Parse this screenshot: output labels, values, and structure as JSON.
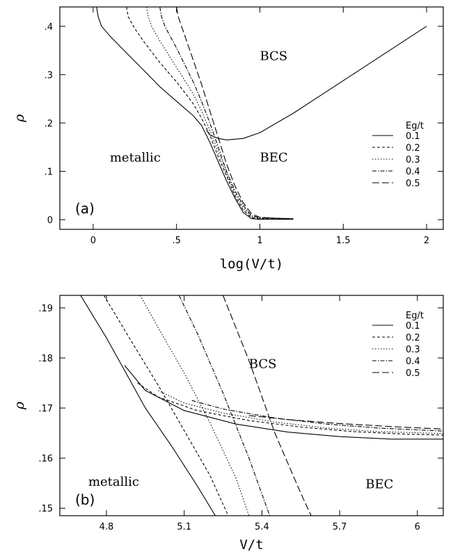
{
  "chart_data": [
    {
      "panel": "(a)",
      "type": "line",
      "xlabel": "log(V/t)",
      "ylabel": "ρ",
      "xlim": [
        -0.2,
        2.1
      ],
      "ylim": [
        -0.02,
        0.44
      ],
      "xticks": [
        0,
        0.5,
        1,
        1.5,
        2
      ],
      "xtick_labels": [
        "0",
        ".5",
        "1",
        "1.5",
        "2"
      ],
      "yticks": [
        0,
        0.1,
        0.2,
        0.3,
        0.4
      ],
      "ytick_labels": [
        "0",
        ".1",
        ".2",
        ".3",
        ".4"
      ],
      "regions": [
        {
          "text": "BCS",
          "x": 1.0,
          "y": 0.33
        },
        {
          "text": "metallic",
          "x": 0.1,
          "y": 0.12
        },
        {
          "text": "BEC",
          "x": 1.0,
          "y": 0.12
        }
      ],
      "legend": {
        "title": "Eg/t",
        "placement": "right",
        "entries": [
          "0.1",
          "0.2",
          "0.3",
          "0.4",
          "0.5"
        ]
      },
      "series": [
        {
          "name": "0.1",
          "dash": "solid",
          "x": [
            0.02,
            0.03,
            0.05,
            0.1,
            0.2,
            0.3,
            0.4,
            0.5,
            0.6,
            0.65,
            0.7,
            0.75,
            0.8,
            0.85,
            0.9,
            0.95,
            1.0,
            1.05,
            1.1,
            1.2
          ],
          "y": [
            0.44,
            0.42,
            0.4,
            0.38,
            0.345,
            0.31,
            0.275,
            0.245,
            0.215,
            0.195,
            0.16,
            0.12,
            0.08,
            0.045,
            0.015,
            0.002,
            0.001,
            0.001,
            0.001,
            0.001
          ]
        },
        {
          "name": "0.2",
          "dash": "4,3",
          "x": [
            0.2,
            0.21,
            0.25,
            0.3,
            0.4,
            0.5,
            0.6,
            0.65,
            0.7,
            0.75,
            0.8,
            0.85,
            0.9,
            0.95,
            1.0,
            1.1,
            1.2
          ],
          "y": [
            0.44,
            0.42,
            0.395,
            0.37,
            0.325,
            0.285,
            0.24,
            0.21,
            0.175,
            0.13,
            0.09,
            0.05,
            0.02,
            0.004,
            0.002,
            0.002,
            0.002
          ]
        },
        {
          "name": "0.3",
          "dash": "1.5,2.5",
          "x": [
            0.32,
            0.33,
            0.35,
            0.4,
            0.5,
            0.6,
            0.65,
            0.7,
            0.75,
            0.8,
            0.85,
            0.9,
            0.95,
            1.0,
            1.1,
            1.2
          ],
          "y": [
            0.44,
            0.42,
            0.4,
            0.37,
            0.315,
            0.26,
            0.225,
            0.185,
            0.14,
            0.095,
            0.055,
            0.025,
            0.006,
            0.003,
            0.002,
            0.002
          ]
        },
        {
          "name": "0.4",
          "dash": "6,2,1.5,2",
          "x": [
            0.4,
            0.41,
            0.43,
            0.5,
            0.6,
            0.65,
            0.7,
            0.75,
            0.8,
            0.85,
            0.9,
            0.95,
            1.0,
            1.1,
            1.2
          ],
          "y": [
            0.44,
            0.42,
            0.4,
            0.355,
            0.285,
            0.245,
            0.2,
            0.15,
            0.1,
            0.06,
            0.03,
            0.008,
            0.004,
            0.003,
            0.002
          ]
        },
        {
          "name": "0.5",
          "dash": "10,4",
          "x": [
            0.5,
            0.51,
            0.53,
            0.6,
            0.65,
            0.7,
            0.75,
            0.8,
            0.85,
            0.9,
            0.95,
            1.0,
            1.1,
            1.2
          ],
          "y": [
            0.44,
            0.42,
            0.4,
            0.33,
            0.28,
            0.225,
            0.17,
            0.115,
            0.07,
            0.035,
            0.012,
            0.005,
            0.003,
            0.002
          ]
        },
        {
          "name": "",
          "dash": "solid",
          "legend": false,
          "x": [
            0.68,
            0.7,
            0.75,
            0.8,
            0.9,
            1.0,
            1.2,
            1.4,
            1.6,
            1.8,
            2.0
          ],
          "y": [
            0.185,
            0.175,
            0.168,
            0.165,
            0.168,
            0.18,
            0.22,
            0.265,
            0.31,
            0.355,
            0.4
          ]
        }
      ]
    },
    {
      "panel": "(b)",
      "type": "line",
      "xlabel": "V/t",
      "ylabel": "ρ",
      "xlim": [
        4.62,
        6.1
      ],
      "ylim": [
        0.1485,
        0.1925
      ],
      "xticks": [
        4.8,
        5.1,
        5.4,
        5.7,
        6.0
      ],
      "xtick_labels": [
        "4.8",
        "5.1",
        "5.4",
        "5.7",
        "6"
      ],
      "yticks": [
        0.15,
        0.16,
        0.17,
        0.18,
        0.19
      ],
      "ytick_labels": [
        ".15",
        ".16",
        ".17",
        ".18",
        ".19"
      ],
      "regions": [
        {
          "text": "BCS",
          "x": 5.35,
          "y": 0.178
        },
        {
          "text": "metallic",
          "x": 4.73,
          "y": 0.1545
        },
        {
          "text": "BEC",
          "x": 5.8,
          "y": 0.154
        }
      ],
      "legend": {
        "title": "Eg/t",
        "placement": "top-right",
        "entries": [
          "0.1",
          "0.2",
          "0.3",
          "0.4",
          "0.5"
        ]
      },
      "series": [
        {
          "name": "0.1",
          "dash": "solid",
          "x": [
            4.7,
            4.8,
            4.87,
            4.95,
            5.05,
            5.15,
            5.22
          ],
          "y": [
            0.1925,
            0.184,
            0.1775,
            0.17,
            0.1625,
            0.1545,
            0.1485
          ]
        },
        {
          "name": "0.2",
          "dash": "4,3",
          "x": [
            4.79,
            4.9,
            5.0,
            5.1,
            5.2,
            5.27
          ],
          "y": [
            0.1925,
            0.183,
            0.1745,
            0.1655,
            0.1565,
            0.1485
          ]
        },
        {
          "name": "0.3",
          "dash": "1.5,2.5",
          "x": [
            4.93,
            5.0,
            5.1,
            5.2,
            5.3,
            5.35
          ],
          "y": [
            0.1925,
            0.186,
            0.177,
            0.167,
            0.156,
            0.1485
          ]
        },
        {
          "name": "0.4",
          "dash": "6,2,1.5,2",
          "x": [
            5.08,
            5.15,
            5.25,
            5.35,
            5.43
          ],
          "y": [
            0.1925,
            0.185,
            0.173,
            0.16,
            0.1485
          ]
        },
        {
          "name": "0.5",
          "dash": "10,4",
          "x": [
            5.25,
            5.35,
            5.45,
            5.55,
            5.59
          ],
          "y": [
            0.1925,
            0.1795,
            0.165,
            0.153,
            0.1485
          ]
        },
        {
          "name": "",
          "dash": "solid",
          "legend": false,
          "x": [
            4.87,
            4.95,
            5.1,
            5.3,
            5.5,
            5.7,
            5.9,
            6.1
          ],
          "y": [
            0.1785,
            0.1735,
            0.1695,
            0.1668,
            0.1652,
            0.1643,
            0.1638,
            0.1638
          ]
        },
        {
          "name": "",
          "dash": "4,3",
          "legend": false,
          "x": [
            4.92,
            5.0,
            5.15,
            5.35,
            5.55,
            5.75,
            5.95,
            6.1
          ],
          "y": [
            0.175,
            0.1722,
            0.1695,
            0.1675,
            0.1662,
            0.1653,
            0.1648,
            0.1646
          ]
        },
        {
          "name": "",
          "dash": "1.5,2.5",
          "legend": false,
          "x": [
            5.0,
            5.1,
            5.25,
            5.45,
            5.65,
            5.85,
            6.1
          ],
          "y": [
            0.1735,
            0.171,
            0.169,
            0.1672,
            0.166,
            0.1653,
            0.1649
          ]
        },
        {
          "name": "",
          "dash": "6,2,1.5,2",
          "legend": false,
          "x": [
            5.13,
            5.25,
            5.45,
            5.65,
            5.85,
            6.1
          ],
          "y": [
            0.1715,
            0.1698,
            0.168,
            0.1668,
            0.166,
            0.1654
          ]
        },
        {
          "name": "",
          "dash": "10,4",
          "legend": false,
          "x": [
            5.35,
            5.5,
            5.7,
            5.9,
            6.1
          ],
          "y": [
            0.1685,
            0.1677,
            0.1669,
            0.1663,
            0.1658
          ]
        }
      ]
    }
  ]
}
